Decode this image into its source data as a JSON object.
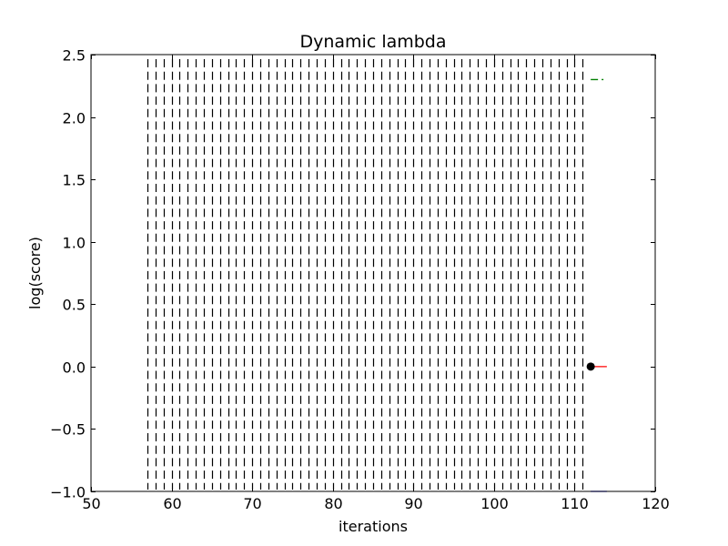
{
  "chart_data": {
    "type": "line",
    "title": "Dynamic lambda",
    "xlabel": "iterations",
    "ylabel": "log(score)",
    "xlim": [
      50,
      120
    ],
    "ylim": [
      -1.0,
      2.5
    ],
    "xticks": [
      "50",
      "60",
      "70",
      "80",
      "90",
      "100",
      "110",
      "120"
    ],
    "yticks": [
      "−1.0",
      "−0.5",
      "0.0",
      "0.5",
      "1.0",
      "1.5",
      "2.0",
      "2.5"
    ],
    "grid": false,
    "legend": "none",
    "vertical_dashed_markers": {
      "x_start": 57,
      "x_end": 111,
      "x_step": 1,
      "y_range": [
        -1.0,
        2.5
      ],
      "color": "#000000"
    },
    "series": [
      {
        "x": [
          112,
          114
        ],
        "y": [
          2.3,
          2.3
        ],
        "color": "#008000",
        "style": "dash-dot"
      },
      {
        "x": [
          112,
          114
        ],
        "y": [
          0.0,
          0.0
        ],
        "color": "#ff0000",
        "style": "solid"
      },
      {
        "x": [
          112,
          114
        ],
        "y": [
          -1.0,
          -1.0
        ],
        "color": "#0000ff",
        "style": "solid"
      },
      {
        "x": [
          112
        ],
        "y": [
          0.0
        ],
        "color": "#000000",
        "style": "marker"
      }
    ]
  }
}
